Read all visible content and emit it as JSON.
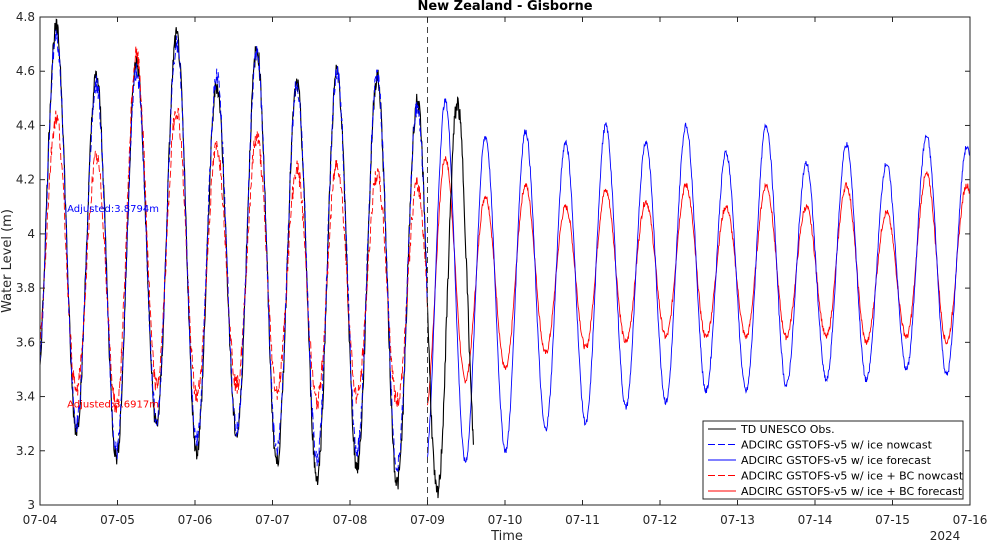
{
  "chart_data": {
    "type": "line",
    "title": "New Zealand - Gisborne",
    "xlabel": "Time",
    "ylabel": "Water Level (m)",
    "x_tick_labels": [
      "07-04",
      "07-05",
      "07-06",
      "07-07",
      "07-08",
      "07-09",
      "07-10",
      "07-11",
      "07-12",
      "07-13",
      "07-14",
      "07-15",
      "07-16"
    ],
    "x_year_label": "2024",
    "x_range_days": [
      4,
      16
    ],
    "ylim": [
      3.0,
      4.8
    ],
    "y_ticks": [
      3,
      3.2,
      3.4,
      3.6,
      3.8,
      4,
      4.2,
      4.4,
      4.6,
      4.8
    ],
    "y_tick_labels": [
      "3",
      "3.2",
      "3.4",
      "3.6",
      "3.8",
      "4",
      "4.2",
      "4.4",
      "4.6",
      "4.8"
    ],
    "nowcast_forecast_boundary_day": 9.0,
    "grid": false,
    "legend_position": "bottom-right",
    "annotations": [
      {
        "text": "Adjusted:3.8794m",
        "x_day": 4.35,
        "y": 4.08,
        "color": "#0000ff"
      },
      {
        "text": "Adjusted:3.6917m",
        "x_day": 4.35,
        "y": 3.36,
        "color": "#ff0000"
      }
    ],
    "series": [
      {
        "name": "TD UNESCO Obs.",
        "color": "#000000",
        "dash": "solid",
        "x_start_day": 4.0,
        "x_end_day": 9.6,
        "peak_day": 4.21,
        "highs": [
          4.76,
          4.58,
          4.63,
          4.73,
          4.55,
          4.68,
          4.55,
          4.6,
          4.58,
          4.49,
          4.48
        ],
        "lows": [
          3.4,
          3.28,
          3.18,
          3.3,
          3.2,
          3.26,
          3.16,
          3.1,
          3.14,
          3.08,
          3.04,
          3.1
        ]
      },
      {
        "name": "ADCIRC GSTOFS-v5 w/ ice nowcast",
        "color": "#0000ff",
        "dash": "dashed",
        "x_start_day": 4.0,
        "x_end_day": 9.0,
        "peak_day": 4.21,
        "highs": [
          4.73,
          4.55,
          4.6,
          4.7,
          4.58,
          4.66,
          4.55,
          4.6,
          4.58,
          4.47
        ],
        "lows": [
          3.4,
          3.3,
          3.2,
          3.32,
          3.24,
          3.28,
          3.2,
          3.16,
          3.2,
          3.14,
          3.08
        ]
      },
      {
        "name": "ADCIRC GSTOFS-v5 w/ ice forecast",
        "color": "#0000ff",
        "dash": "solid",
        "x_start_day": 9.0,
        "x_end_day": 16.0,
        "peak_day": 9.23,
        "highs": [
          4.49,
          4.36,
          4.38,
          4.34,
          4.4,
          4.34,
          4.4,
          4.3,
          4.4,
          4.26,
          4.33,
          4.26,
          4.36,
          4.32,
          4.42
        ],
        "lows": [
          3.14,
          3.16,
          3.2,
          3.28,
          3.3,
          3.36,
          3.38,
          3.42,
          3.42,
          3.44,
          3.46,
          3.46,
          3.5,
          3.48,
          3.52
        ]
      },
      {
        "name": "ADCIRC GSTOFS-v5 w/ ice + BC nowcast",
        "color": "#ff0000",
        "dash": "dashed",
        "x_start_day": 4.0,
        "x_end_day": 9.0,
        "peak_day": 4.21,
        "highs": [
          4.43,
          4.28,
          4.66,
          4.46,
          4.32,
          4.36,
          4.24,
          4.26,
          4.22,
          4.18
        ],
        "lows": [
          3.52,
          3.42,
          3.36,
          3.44,
          3.4,
          3.44,
          3.42,
          3.38,
          3.4,
          3.38,
          3.36
        ]
      },
      {
        "name": "ADCIRC GSTOFS-v5 w/ ice + BC forecast",
        "color": "#ff0000",
        "dash": "solid",
        "x_start_day": 9.0,
        "x_end_day": 16.0,
        "peak_day": 9.23,
        "highs": [
          4.28,
          4.14,
          4.18,
          4.1,
          4.16,
          4.12,
          4.18,
          4.1,
          4.18,
          4.1,
          4.18,
          4.08,
          4.22,
          4.18,
          4.34
        ],
        "lows": [
          3.34,
          3.46,
          3.5,
          3.56,
          3.58,
          3.6,
          3.62,
          3.62,
          3.62,
          3.62,
          3.62,
          3.6,
          3.62,
          3.6,
          3.62
        ]
      }
    ]
  }
}
